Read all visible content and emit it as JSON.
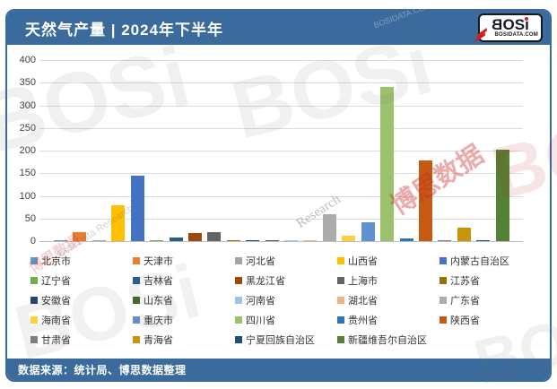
{
  "header": {
    "title": "天然气产量 | 2024年下半年"
  },
  "logo": {
    "main": "BOSi",
    "sub": "BOSIDATA.COM"
  },
  "footer": {
    "source_text": "数据来源：统计局、博思数据整理"
  },
  "theme": {
    "accent": "#3A6B9C",
    "grid_line": "#DCDCDC",
    "axis_line": "#BDBDBD",
    "logo_red": "#CC2222"
  },
  "chart_data": {
    "type": "bar",
    "title": "天然气产量 | 2024年下半年",
    "xlabel": "",
    "ylabel": "",
    "ylim": [
      0,
      400
    ],
    "y_ticks": [
      0,
      50,
      100,
      150,
      200,
      250,
      300,
      350,
      400
    ],
    "grid": true,
    "legend_position": "bottom",
    "categories": [
      "北京市",
      "天津市",
      "河北省",
      "山西省",
      "内蒙古自治区",
      "辽宁省",
      "吉林省",
      "黑龙江省",
      "上海市",
      "江苏省",
      "安徽省",
      "山东省",
      "河南省",
      "湖北省",
      "广东省",
      "海南省",
      "重庆市",
      "四川省",
      "贵州省",
      "陕西省",
      "甘肃省",
      "青海省",
      "宁夏回族自治区",
      "新疆维吾尔自治区"
    ],
    "values": [
      2,
      20,
      2,
      80,
      145,
      2,
      8,
      18,
      19,
      2,
      2,
      3,
      2,
      2,
      59,
      12,
      42,
      340,
      5,
      178,
      3,
      29,
      2,
      203
    ],
    "colors": [
      "#5B9BD5",
      "#ED7D31",
      "#A5A5A5",
      "#FFC000",
      "#4472C4",
      "#70AD47",
      "#255E91",
      "#9E480E",
      "#636363",
      "#997300",
      "#264478",
      "#43682B",
      "#9DC3E6",
      "#F4B183",
      "#ACACAC",
      "#FECF3E",
      "#6191CE",
      "#9CC26D",
      "#2E75B6",
      "#C55A11",
      "#7F7F7F",
      "#C99508",
      "#1F4E79",
      "#538135"
    ]
  },
  "watermarks": [
    "BOSi",
    "BOSi",
    "BOSi",
    "博思数据",
    "Research",
    "Bosi Data Research",
    "博思数据",
    "BOSi",
    "BOSi",
    "BOSIDATA.COM"
  ]
}
